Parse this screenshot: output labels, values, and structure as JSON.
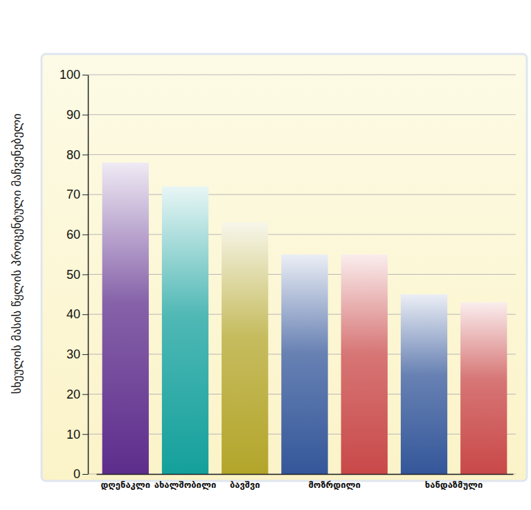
{
  "chart_data": {
    "type": "bar",
    "ylabel": "სხეულის მასის წყლის პროცენტული მაჩვენებელი",
    "categories": [
      "დღენაკლი",
      "ახალშობილი",
      "ბავშვი",
      "მოზრდილი",
      null,
      "ხანდაზმული",
      null
    ],
    "values": [
      78,
      72,
      63,
      55,
      55,
      45,
      43
    ],
    "colors": [
      "#5e2d8c",
      "#14a09c",
      "#b3a52a",
      "#34579a",
      "#c94848",
      "#34579a",
      "#c94848"
    ],
    "ylim": [
      0,
      100
    ],
    "yticks": [
      0,
      10,
      20,
      30,
      40,
      50,
      60,
      70,
      80,
      90,
      100
    ],
    "grid": true
  }
}
